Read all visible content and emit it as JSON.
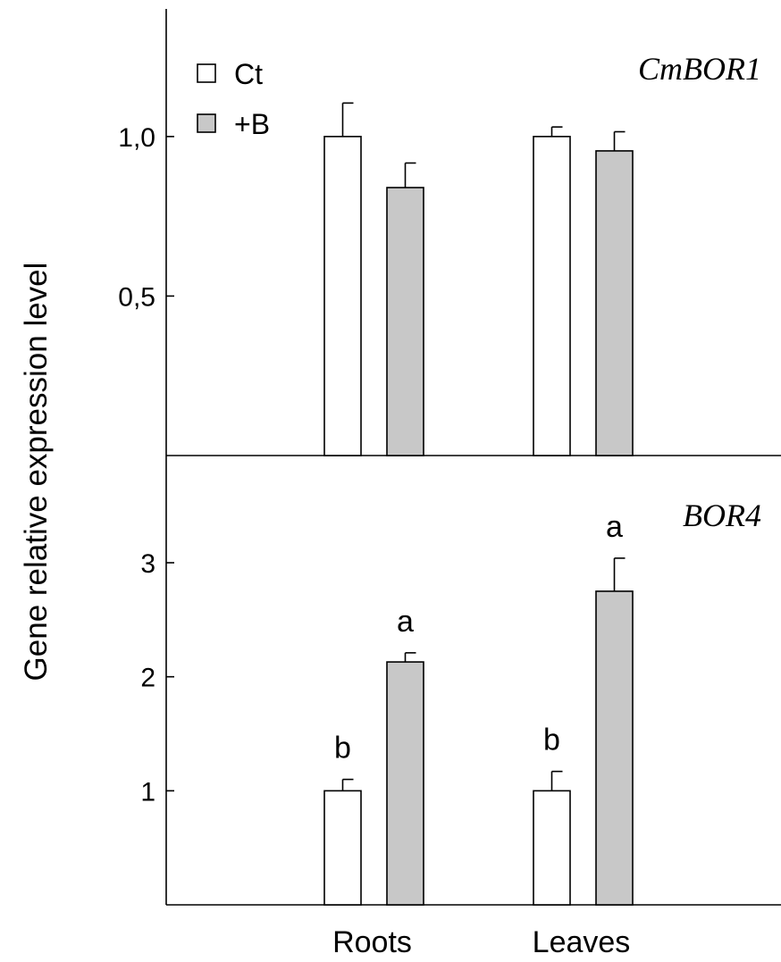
{
  "legend": [
    {
      "label": "Ct",
      "color": "#ffffff"
    },
    {
      "label": "+B",
      "color": "#c8c8c8"
    }
  ],
  "chart_data": [
    {
      "type": "bar",
      "title": "CmBOR1",
      "ylabel": "Gene relative expression level",
      "categories": [
        "Roots",
        "Leaves"
      ],
      "ylim": [
        0,
        1.4
      ],
      "yticks": [
        0.5,
        1.0
      ],
      "ytick_labels": [
        "0,5",
        "1,0"
      ],
      "series": [
        {
          "name": "Ct",
          "color": "#ffffff",
          "values": [
            1.0,
            1.0
          ],
          "errors": [
            0.105,
            0.03
          ],
          "labels": [
            "",
            ""
          ]
        },
        {
          "name": "+B",
          "color": "#c8c8c8",
          "values": [
            0.84,
            0.955
          ],
          "errors": [
            0.077,
            0.06
          ],
          "labels": [
            "",
            ""
          ]
        }
      ]
    },
    {
      "type": "bar",
      "title": "BOR4",
      "ylabel": "Gene relative expression level",
      "categories": [
        "Roots",
        "Leaves"
      ],
      "ylim": [
        0,
        3.94
      ],
      "yticks": [
        1,
        2,
        3
      ],
      "ytick_labels": [
        "1",
        "2",
        "3"
      ],
      "series": [
        {
          "name": "Ct",
          "color": "#ffffff",
          "values": [
            1.0,
            1.0
          ],
          "errors": [
            0.1,
            0.17
          ],
          "labels": [
            "b",
            "b"
          ]
        },
        {
          "name": "+B",
          "color": "#c8c8c8",
          "values": [
            2.13,
            2.75
          ],
          "errors": [
            0.08,
            0.29
          ],
          "labels": [
            "a",
            "a"
          ]
        }
      ]
    }
  ]
}
